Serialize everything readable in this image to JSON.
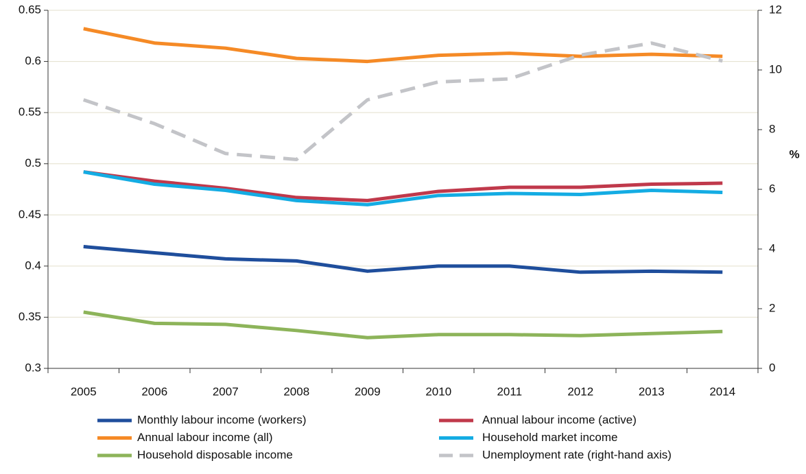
{
  "chart_data": {
    "type": "line",
    "categories": [
      "2005",
      "2006",
      "2007",
      "2008",
      "2009",
      "2010",
      "2011",
      "2012",
      "2013",
      "2014"
    ],
    "ylim": [
      0.3,
      0.65
    ],
    "yticks": [
      0.3,
      0.35,
      0.4,
      0.45,
      0.5,
      0.55,
      0.6,
      0.65
    ],
    "y2lim": [
      0,
      12
    ],
    "y2ticks": [
      0,
      2,
      4,
      6,
      8,
      10,
      12
    ],
    "y2label": "%",
    "grid": true,
    "series": [
      {
        "name": "Monthly labour income (workers)",
        "color": "#1f4e9c",
        "values": [
          0.419,
          0.413,
          0.407,
          0.405,
          0.395,
          0.4,
          0.4,
          0.394,
          0.395,
          0.394
        ]
      },
      {
        "name": "Annual labour income (active)",
        "color": "#c0394b",
        "values": [
          0.492,
          0.483,
          0.476,
          0.467,
          0.464,
          0.473,
          0.477,
          0.477,
          0.48,
          0.481
        ]
      },
      {
        "name": "Annual labour income (all)",
        "color": "#f58a26",
        "values": [
          0.632,
          0.618,
          0.613,
          0.603,
          0.6,
          0.606,
          0.608,
          0.605,
          0.607,
          0.605
        ]
      },
      {
        "name": "Household market income",
        "color": "#14ace3",
        "values": [
          0.492,
          0.48,
          0.474,
          0.464,
          0.46,
          0.469,
          0.471,
          0.47,
          0.474,
          0.472
        ]
      },
      {
        "name": "Household disposable income",
        "color": "#8db45a",
        "values": [
          0.355,
          0.344,
          0.343,
          0.337,
          0.33,
          0.333,
          0.333,
          0.332,
          0.334,
          0.336
        ]
      },
      {
        "name": "Unemployment rate (right-hand axis)",
        "color": "#c3c4c8",
        "axis": "y2",
        "dashed": true,
        "values": [
          9.0,
          8.2,
          7.2,
          7.0,
          9.0,
          9.6,
          9.7,
          10.5,
          10.9,
          10.3
        ]
      }
    ]
  }
}
